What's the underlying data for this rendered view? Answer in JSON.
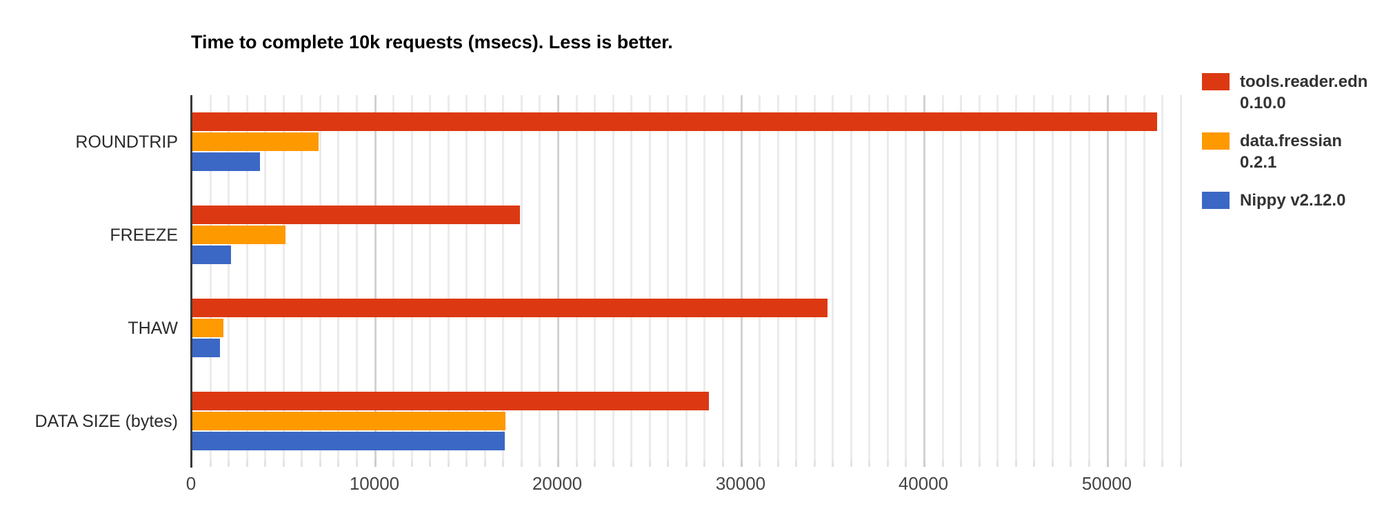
{
  "title": "Time to complete 10k requests (msecs). Less is better.",
  "chart_data": {
    "type": "bar",
    "orientation": "horizontal",
    "title": "Time to complete 10k requests (msecs). Less is better.",
    "categories": [
      "ROUNDTRIP",
      "FREEZE",
      "THAW",
      "DATA SIZE (bytes)"
    ],
    "series": [
      {
        "name": "tools.reader.edn 0.10.0",
        "color": "#dc3912",
        "values": [
          52700,
          17900,
          34700,
          28200
        ]
      },
      {
        "name": "data.fressian 0.2.1",
        "color": "#ff9900",
        "values": [
          6900,
          5100,
          1700,
          17100
        ]
      },
      {
        "name": "Nippy v2.12.0",
        "color": "#3b68c5",
        "values": [
          3700,
          2100,
          1500,
          17050
        ]
      }
    ],
    "xlabel": "",
    "ylabel": "",
    "xlim": [
      0,
      54700
    ],
    "x_ticks": [
      0,
      10000,
      20000,
      30000,
      40000,
      50000
    ],
    "minor_grid_step": 1000,
    "grid": true,
    "legend_position": "right"
  }
}
